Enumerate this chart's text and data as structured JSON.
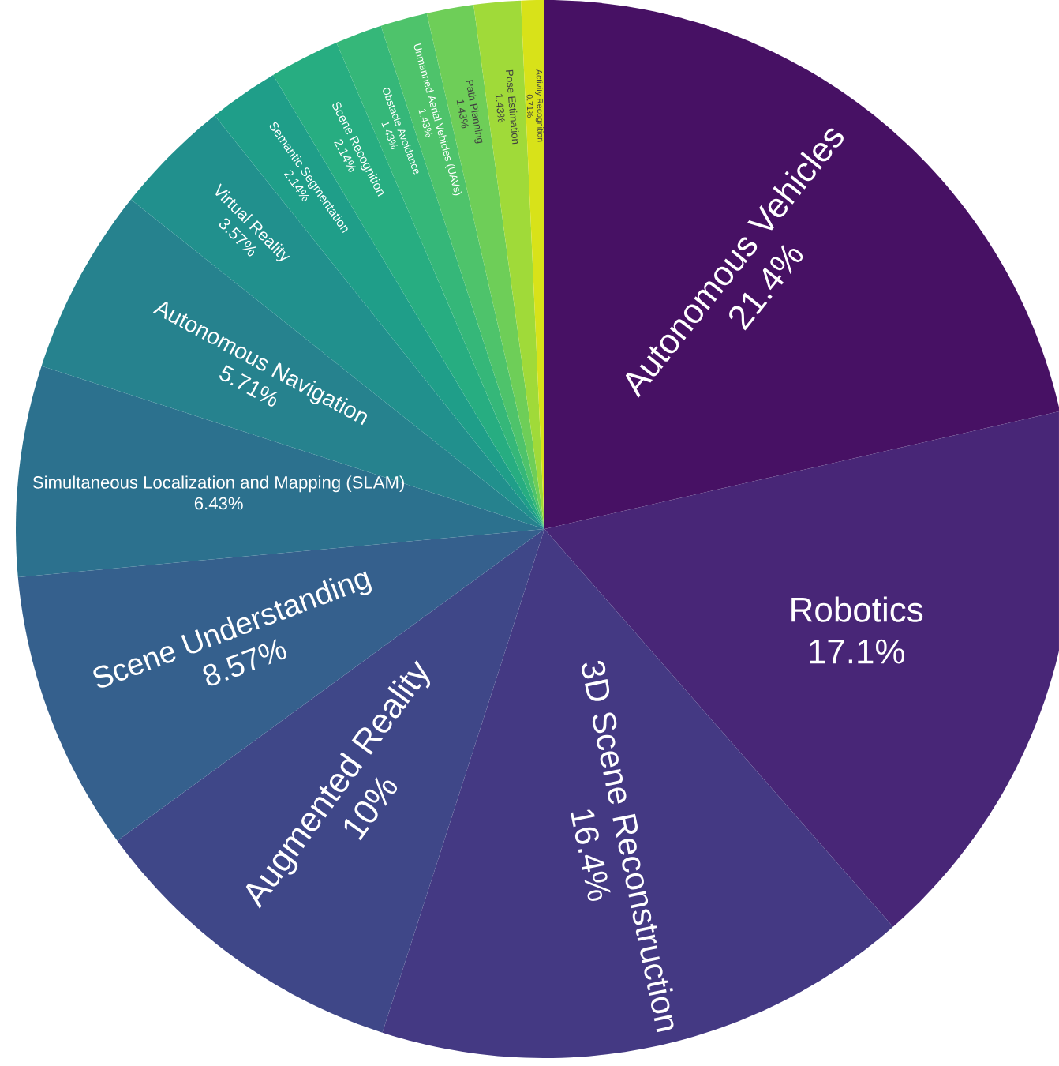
{
  "chart_data": {
    "type": "pie",
    "categories": [
      "Autonomous Vehicles",
      "Robotics",
      "3D Scene Reconstruction",
      "Augmented Reality",
      "Scene Understanding",
      "Simultaneous Localization and Mapping (SLAM)",
      "Autonomous Navigation",
      "Virtual Reality",
      "Semantic Segmentation",
      "Scene Recognition",
      "Obstacle Avoidance",
      "Unmanned Aerial Vehicles (UAVs)",
      "Path Planning",
      "Pose Estimation",
      "Activity Recognition"
    ],
    "values": [
      21.4,
      17.1,
      16.4,
      10,
      8.57,
      6.43,
      5.71,
      3.57,
      2.14,
      2.14,
      1.43,
      1.43,
      1.43,
      1.43,
      0.71
    ],
    "value_labels": [
      "21.4%",
      "17.1%",
      "16.4%",
      "10%",
      "8.57%",
      "6.43%",
      "5.71%",
      "3.57%",
      "2.14%",
      "2.14%",
      "1.43%",
      "1.43%",
      "1.43%",
      "1.43%",
      "0.71%"
    ],
    "colors": [
      "#471164",
      "#482677",
      "#443983",
      "#3f4788",
      "#35608d",
      "#2c718e",
      "#26828e",
      "#21908d",
      "#1f9e89",
      "#27ad81",
      "#35b779",
      "#4ec36b",
      "#6ece58",
      "#a0da39",
      "#d8e219"
    ]
  }
}
